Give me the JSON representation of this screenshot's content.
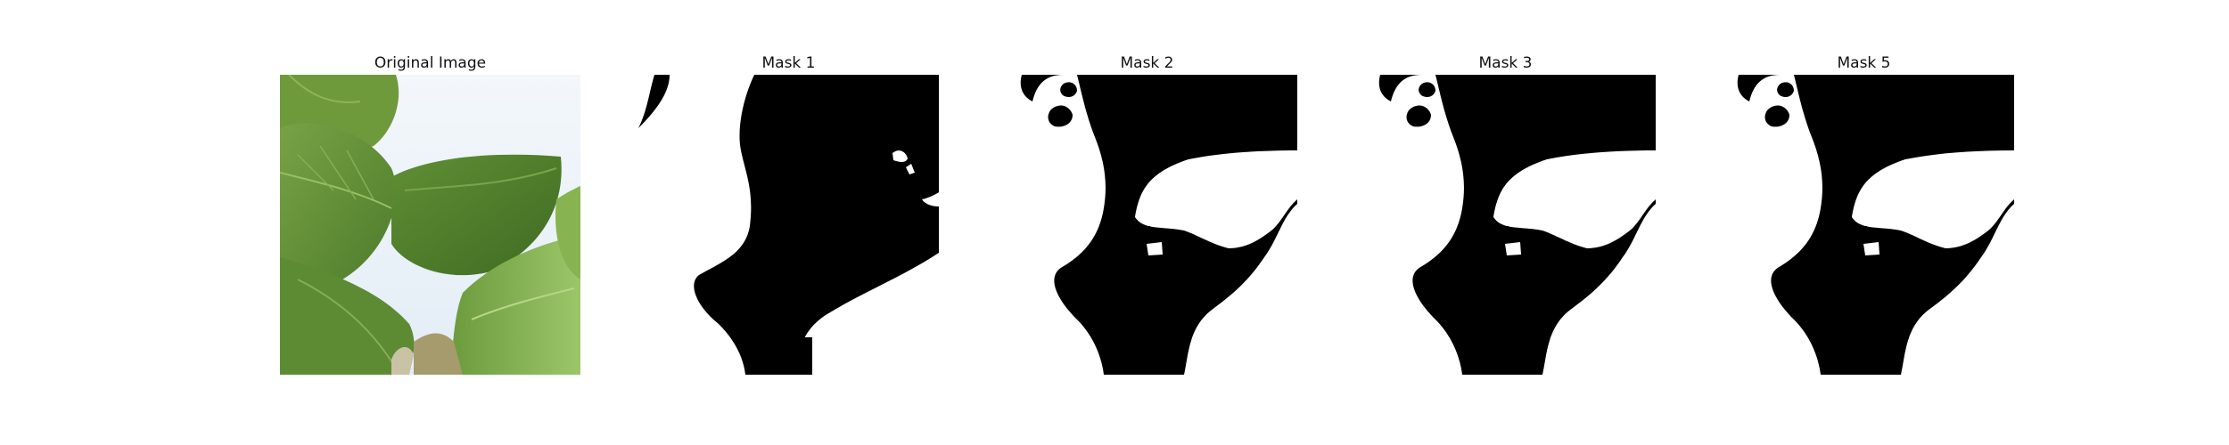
{
  "figure": {
    "panels": [
      {
        "title": "Original Image"
      },
      {
        "title": "Mask 1"
      },
      {
        "title": "Mask 2"
      },
      {
        "title": "Mask 3"
      },
      {
        "title": "Mask 5"
      }
    ]
  },
  "colors": {
    "mask_foreground": "#ffffff",
    "mask_background": "#000000",
    "leaf_dark": "#4f7f2c",
    "leaf_mid": "#6d9b3d",
    "leaf_light": "#9cc66a",
    "sky": "#e8f0f8",
    "stem": "#a59b6c"
  }
}
